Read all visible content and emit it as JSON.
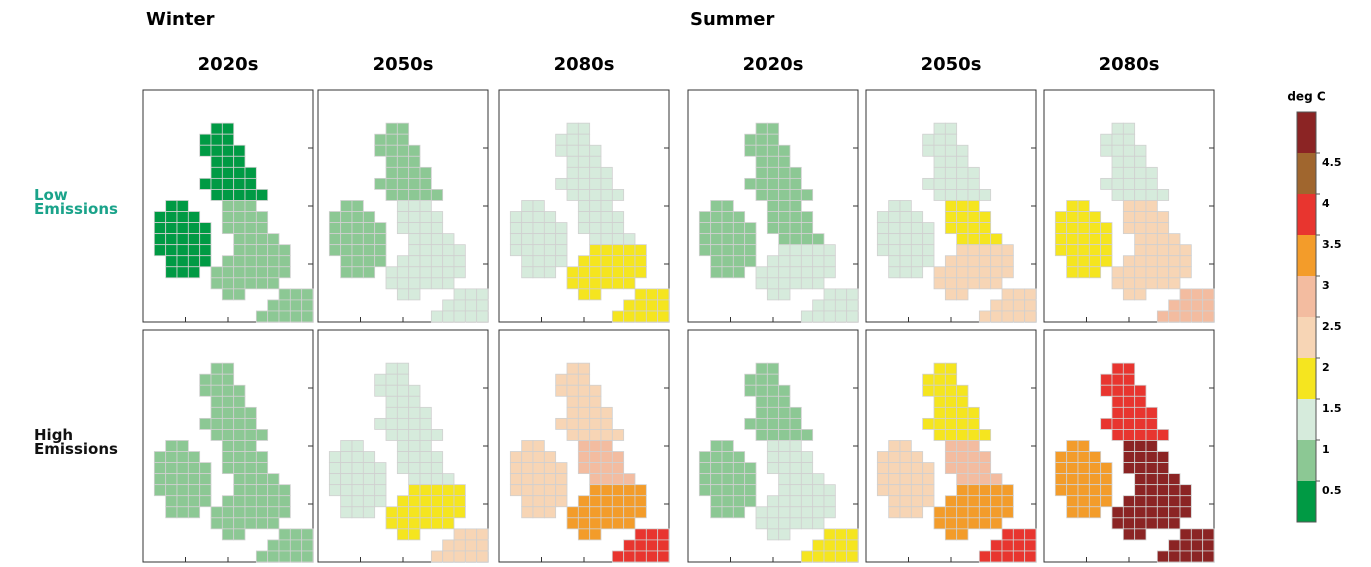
{
  "seasons": [
    "Winter",
    "Summer"
  ],
  "decades": [
    "2020s",
    "2050s",
    "2080s"
  ],
  "rows": [
    "Low Emissions",
    "High Emissions"
  ],
  "panels": [
    [
      [
        0.25,
        0.25,
        0.75,
        0.75,
        0.75
      ],
      [
        0.75,
        0.75,
        1.25,
        1.25,
        1.25
      ],
      [
        1.25,
        1.25,
        1.25,
        1.75,
        1.75
      ],
      [
        0.75,
        0.75,
        0.75,
        1.25,
        1.25
      ],
      [
        1.25,
        1.25,
        1.75,
        2.25,
        2.25
      ],
      [
        1.75,
        1.25,
        2.25,
        2.25,
        2.75
      ]
    ],
    [
      [
        0.75,
        0.75,
        0.75,
        0.75,
        0.75
      ],
      [
        1.25,
        1.25,
        1.25,
        1.75,
        2.25
      ],
      [
        2.25,
        2.25,
        2.75,
        3.25,
        3.75
      ],
      [
        0.75,
        0.75,
        1.25,
        1.25,
        1.75
      ],
      [
        2.25,
        1.75,
        2.75,
        3.25,
        3.75
      ],
      [
        3.25,
        3.75,
        4.75,
        4.75,
        4.75
      ]
    ]
  ],
  "legend": {
    "title": "deg C",
    "range": [
      0,
      5
    ],
    "ticks": [
      0.5,
      1,
      1.5,
      2,
      2.5,
      3,
      3.5,
      4,
      4.5
    ],
    "colors": [
      "#009a44",
      "#8cc894",
      "#d6ebdc",
      "#f5e51f",
      "#f7d5b5",
      "#f3bca0",
      "#f39c2a",
      "#e8352f",
      "#a0662e",
      "#8b2424"
    ]
  }
}
